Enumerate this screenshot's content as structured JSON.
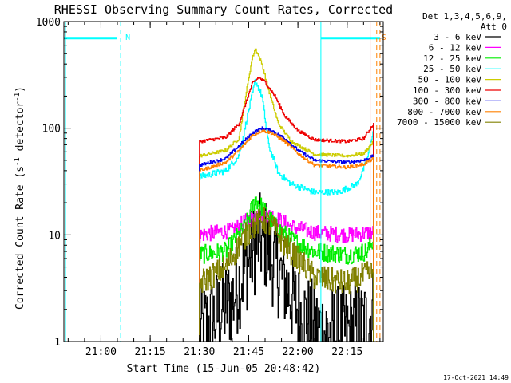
{
  "chart_data": {
    "type": "line",
    "title": "RHESSI Observing Summary Count Rates, Corrected",
    "xlabel": "Start Time (15-Jun-05 20:48:42)",
    "ylabel_main": "Corrected Count Rate (s",
    "ylabel_sup1": "-1",
    "ylabel_mid": " detector",
    "ylabel_sup2": "-1",
    "ylabel_end": ")",
    "y_scale": "log",
    "ylim": [
      1,
      1000
    ],
    "xlim": [
      "20:48:42",
      "22:26:00"
    ],
    "x_ticks": [
      "21:00",
      "21:15",
      "21:30",
      "21:45",
      "22:00",
      "22:15"
    ],
    "y_ticks": [
      "1",
      "10",
      "100",
      "1000"
    ],
    "legend": {
      "position": "right",
      "header": [
        "Det 1,3,4,5,6,9,",
        "Att 0"
      ],
      "entries": [
        {
          "label": "3 - 6 keV",
          "color": "#000000"
        },
        {
          "label": "6 - 12 keV",
          "color": "#ff00ff"
        },
        {
          "label": "12 - 25 keV",
          "color": "#00ee00"
        },
        {
          "label": "25 - 50 keV",
          "color": "#00ffff"
        },
        {
          "label": "50 - 100 keV",
          "color": "#cccc00"
        },
        {
          "label": "100 - 300 keV",
          "color": "#ee0000"
        },
        {
          "label": "300 - 800 keV",
          "color": "#0000ee"
        },
        {
          "label": "800 - 7000 keV",
          "color": "#ff8000"
        },
        {
          "label": "7000 - 15000 keV",
          "color": "#808000"
        }
      ]
    },
    "markers": [
      {
        "label": "N",
        "time": "21:06",
        "color": "#00ffff"
      },
      {
        "label": "S",
        "time": "22:24",
        "color": "#ff8000"
      }
    ],
    "night_lines": [
      {
        "t0": "20:48:42",
        "t1": "21:05",
        "y": 700,
        "color": "#00ffff"
      },
      {
        "t0": "22:07",
        "t1": "22:25",
        "y": 700,
        "color": "#00ffff"
      }
    ],
    "series": [
      {
        "color": "#000000",
        "start": "21:30",
        "end": "22:23",
        "noise": 0.9,
        "points": [
          [
            "21:30",
            1.2
          ],
          [
            "21:40",
            2.5
          ],
          [
            "21:44",
            5
          ],
          [
            "21:48",
            9
          ],
          [
            "21:50",
            8
          ],
          [
            "21:55",
            4
          ],
          [
            "22:00",
            2
          ],
          [
            "22:05",
            1.3
          ],
          [
            "22:15",
            1.2
          ],
          [
            "22:21",
            1.5
          ],
          [
            "22:23",
            2
          ]
        ]
      },
      {
        "color": "#ff00ff",
        "start": "21:30",
        "end": "22:23",
        "noise": 0.15,
        "points": [
          [
            "21:30",
            10
          ],
          [
            "21:40",
            11
          ],
          [
            "21:45",
            14
          ],
          [
            "21:48",
            16
          ],
          [
            "21:52",
            15
          ],
          [
            "21:58",
            12
          ],
          [
            "22:05",
            10.5
          ],
          [
            "22:15",
            10
          ],
          [
            "22:23",
            10.5
          ]
        ]
      },
      {
        "color": "#00ee00",
        "start": "21:30",
        "end": "22:23",
        "noise": 0.18,
        "points": [
          [
            "21:30",
            6.5
          ],
          [
            "21:38",
            7
          ],
          [
            "21:44",
            12
          ],
          [
            "21:47",
            22
          ],
          [
            "21:49",
            18
          ],
          [
            "21:53",
            12
          ],
          [
            "21:58",
            9
          ],
          [
            "22:05",
            7
          ],
          [
            "22:15",
            6.5
          ],
          [
            "22:21",
            7
          ],
          [
            "22:23",
            9
          ]
        ]
      },
      {
        "color": "#00ffff",
        "start": "21:30",
        "end": "22:23",
        "noise": 0.06,
        "points": [
          [
            "21:30",
            35
          ],
          [
            "21:38",
            40
          ],
          [
            "21:42",
            55
          ],
          [
            "21:45",
            150
          ],
          [
            "21:47",
            280
          ],
          [
            "21:49",
            200
          ],
          [
            "21:51",
            70
          ],
          [
            "21:54",
            38
          ],
          [
            "21:58",
            30
          ],
          [
            "22:05",
            25
          ],
          [
            "22:12",
            25
          ],
          [
            "22:18",
            30
          ],
          [
            "22:21",
            50
          ],
          [
            "22:23",
            100
          ]
        ]
      },
      {
        "color": "#cccc00",
        "start": "21:30",
        "end": "22:23",
        "noise": 0.03,
        "points": [
          [
            "21:30",
            55
          ],
          [
            "21:38",
            62
          ],
          [
            "21:42",
            80
          ],
          [
            "21:44",
            200
          ],
          [
            "21:46",
            450
          ],
          [
            "21:47",
            560
          ],
          [
            "21:49",
            400
          ],
          [
            "21:51",
            230
          ],
          [
            "21:54",
            110
          ],
          [
            "21:58",
            75
          ],
          [
            "22:05",
            57
          ],
          [
            "22:15",
            55
          ],
          [
            "22:20",
            58
          ],
          [
            "22:23",
            75
          ]
        ]
      },
      {
        "color": "#ee0000",
        "start": "21:30",
        "end": "22:23",
        "noise": 0.03,
        "points": [
          [
            "21:30",
            75
          ],
          [
            "21:38",
            82
          ],
          [
            "21:42",
            110
          ],
          [
            "21:44",
            170
          ],
          [
            "21:46",
            260
          ],
          [
            "21:48",
            300
          ],
          [
            "21:50",
            270
          ],
          [
            "21:53",
            200
          ],
          [
            "21:56",
            130
          ],
          [
            "22:00",
            95
          ],
          [
            "22:05",
            78
          ],
          [
            "22:15",
            75
          ],
          [
            "22:20",
            80
          ],
          [
            "22:23",
            110
          ]
        ]
      },
      {
        "color": "#0000ee",
        "start": "21:30",
        "end": "22:23",
        "noise": 0.03,
        "points": [
          [
            "21:30",
            45
          ],
          [
            "21:38",
            52
          ],
          [
            "21:42",
            68
          ],
          [
            "21:46",
            90
          ],
          [
            "21:49",
            100
          ],
          [
            "21:52",
            95
          ],
          [
            "21:56",
            80
          ],
          [
            "22:00",
            62
          ],
          [
            "22:05",
            50
          ],
          [
            "22:15",
            48
          ],
          [
            "22:20",
            50
          ],
          [
            "22:23",
            55
          ]
        ]
      },
      {
        "color": "#ff8000",
        "start": "21:30",
        "end": "22:23",
        "noise": 0.03,
        "points": [
          [
            "21:30",
            40
          ],
          [
            "21:38",
            48
          ],
          [
            "21:42",
            62
          ],
          [
            "21:46",
            85
          ],
          [
            "21:49",
            95
          ],
          [
            "21:52",
            90
          ],
          [
            "21:56",
            75
          ],
          [
            "22:00",
            58
          ],
          [
            "22:05",
            45
          ],
          [
            "22:15",
            43
          ],
          [
            "22:20",
            46
          ],
          [
            "22:23",
            52
          ]
        ]
      },
      {
        "color": "#808000",
        "start": "21:30",
        "end": "22:23",
        "noise": 0.25,
        "points": [
          [
            "21:30",
            3.5
          ],
          [
            "21:38",
            5
          ],
          [
            "21:42",
            8
          ],
          [
            "21:46",
            12
          ],
          [
            "21:49",
            14
          ],
          [
            "21:52",
            12
          ],
          [
            "21:56",
            8
          ],
          [
            "22:00",
            6
          ],
          [
            "22:05",
            4
          ],
          [
            "22:15",
            3.5
          ],
          [
            "22:23",
            4.5
          ]
        ]
      }
    ]
  },
  "footer": {
    "timestamp": "17-Oct-2021 14:49"
  }
}
